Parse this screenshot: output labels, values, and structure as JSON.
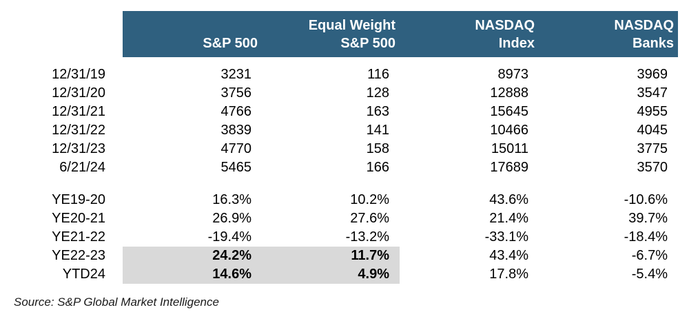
{
  "colors": {
    "header_bg": "#2F607F",
    "header_text": "#FFFFFF",
    "highlight_bg": "#D9D9D9",
    "body_text": "#000000"
  },
  "chart_data": {
    "type": "table",
    "column_headers": [
      [
        "",
        "S&P 500"
      ],
      [
        "Equal Weight",
        "S&P 500"
      ],
      [
        "NASDAQ",
        "Index"
      ],
      [
        "NASDAQ",
        "Banks"
      ]
    ],
    "index_level_rows": [
      {
        "label": "12/31/19",
        "values": [
          "3231",
          "116",
          "8973",
          "3969"
        ]
      },
      {
        "label": "12/31/20",
        "values": [
          "3756",
          "128",
          "12888",
          "3547"
        ]
      },
      {
        "label": "12/31/21",
        "values": [
          "4766",
          "163",
          "15645",
          "4955"
        ]
      },
      {
        "label": "12/31/22",
        "values": [
          "3839",
          "141",
          "10466",
          "4045"
        ]
      },
      {
        "label": "12/31/23",
        "values": [
          "4770",
          "158",
          "15011",
          "3775"
        ]
      },
      {
        "label": "6/21/24",
        "values": [
          "5465",
          "166",
          "17689",
          "3570"
        ]
      }
    ],
    "return_rows": [
      {
        "label": "YE19-20",
        "values": [
          "16.3%",
          "10.2%",
          "43.6%",
          "-10.6%"
        ],
        "highlight": false
      },
      {
        "label": "YE20-21",
        "values": [
          "26.9%",
          "27.6%",
          "21.4%",
          "39.7%"
        ],
        "highlight": false
      },
      {
        "label": "YE21-22",
        "values": [
          "-19.4%",
          "-13.2%",
          "-33.1%",
          "-18.4%"
        ],
        "highlight": false
      },
      {
        "label": "YE22-23",
        "values": [
          "24.2%",
          "11.7%",
          "43.4%",
          "-6.7%"
        ],
        "highlight": true
      },
      {
        "label": "YTD24",
        "values": [
          "14.6%",
          "4.9%",
          "17.8%",
          "-5.4%"
        ],
        "highlight": true
      }
    ],
    "highlighted_rows": [
      "YE22-23",
      "YTD24"
    ],
    "highlighted_columns": [
      "S&P 500",
      "Equal Weight S&P 500"
    ],
    "layout": {
      "value_alignment": "right",
      "grid": "off",
      "legend": "none"
    }
  },
  "source_note": "Source: S&P Global Market Intelligence"
}
